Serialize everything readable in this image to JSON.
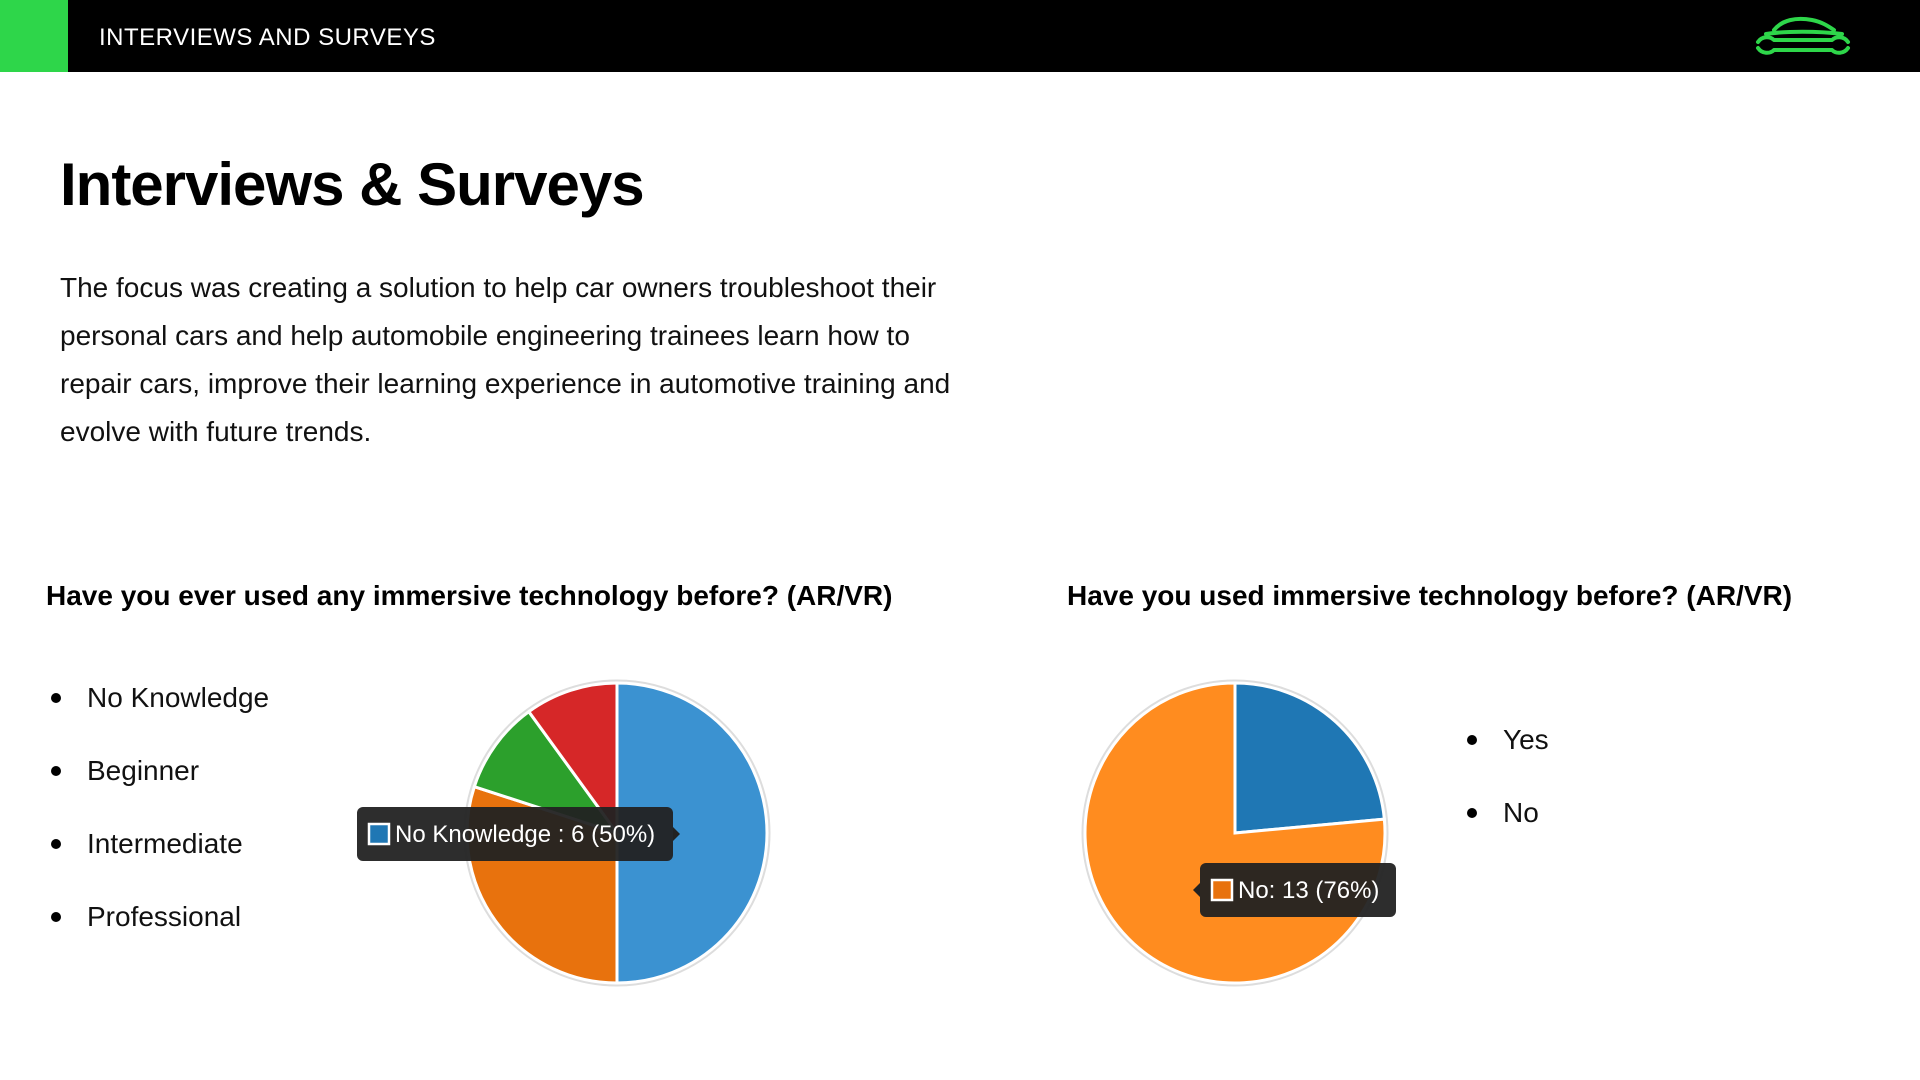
{
  "header": {
    "title": "INTERVIEWS AND SURVEYS",
    "accent_color": "#2ed64a",
    "logo_icon": "car-wrench-icon",
    "logo_color": "#2ed64a"
  },
  "main": {
    "title": "Interviews & Surveys",
    "intro": "The focus was creating a solution to help car owners troubleshoot their personal cars and help automobile engineering trainees learn how to repair cars, improve their learning experience in automotive training and evolve with future trends."
  },
  "survey1": {
    "question": "Have you ever used any immersive technology before? (AR/VR)",
    "options": [
      "No Knowledge",
      "Beginner",
      "Intermediate",
      "Professional"
    ]
  },
  "survey2": {
    "question": "Have you used  immersive technology before? (AR/VR)",
    "options": [
      "Yes",
      "No"
    ]
  },
  "chart_data": [
    {
      "type": "pie",
      "title": "Have you ever used any immersive technology before? (AR/VR)",
      "categories": [
        "No Knowledge",
        "Beginner",
        "Intermediate",
        "Professional"
      ],
      "values": [
        6,
        3.6,
        1.2,
        1.2
      ],
      "colors": [
        "#3b92d1",
        "#e8720d",
        "#2ca02c",
        "#d62728"
      ],
      "tooltip": "No Knowledge : 6 (50%)",
      "tooltip_color": "#1f77b4"
    },
    {
      "type": "pie",
      "title": "Have you used  immersive technology before? (AR/VR)",
      "categories": [
        "Yes",
        "No"
      ],
      "values": [
        4,
        13
      ],
      "colors": [
        "#1f77b4",
        "#ff8c1f"
      ],
      "tooltip": "No: 13 (76%)",
      "tooltip_color": "#e8720d"
    }
  ]
}
